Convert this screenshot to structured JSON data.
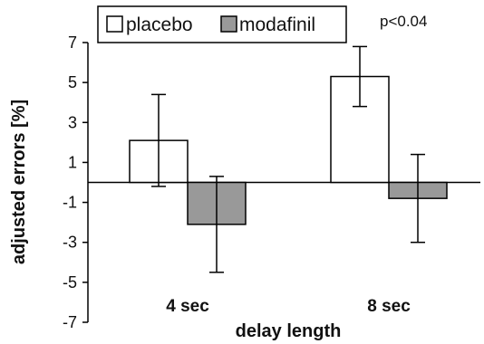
{
  "chart_data": {
    "type": "bar",
    "categories": [
      "4 sec",
      "8 sec"
    ],
    "series": [
      {
        "name": "placebo",
        "color": "#ffffff",
        "values": [
          2.1,
          5.3
        ],
        "error": [
          2.3,
          1.5
        ]
      },
      {
        "name": "modafinil",
        "color": "#999999",
        "values": [
          -2.1,
          -0.8
        ],
        "error": [
          2.4,
          2.2
        ]
      }
    ],
    "xlabel": "delay length",
    "ylabel": "adjusted errors [%]",
    "ylim": [
      -7,
      7
    ],
    "yticks": [
      -7,
      -5,
      -3,
      -1,
      1,
      3,
      5,
      7
    ],
    "annotations": [
      {
        "text": "p<0.04",
        "category": "8 sec"
      }
    ],
    "legend_position": "top",
    "grid": false
  }
}
